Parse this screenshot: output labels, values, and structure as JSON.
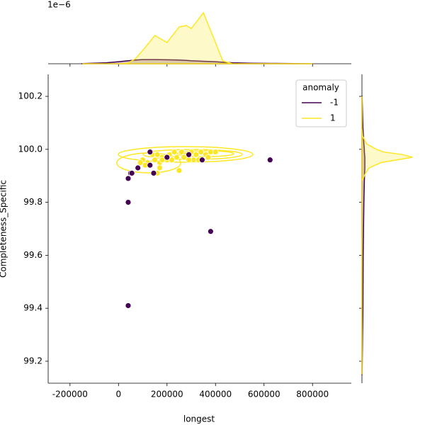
{
  "chart_data": {
    "type": "scatter",
    "x_label": "longest",
    "y_label": "Completeness_Specific",
    "xlim": [
      -290000,
      960000
    ],
    "ylim": [
      99.117,
      100.283
    ],
    "xticks": [
      -200000,
      0,
      200000,
      400000,
      600000,
      800000
    ],
    "yticks": [
      99.2,
      99.4,
      99.6,
      99.8,
      {
        "value": 100.0,
        "label": "100.0"
      },
      100.2
    ],
    "legend": {
      "title": "anomaly",
      "position": "upper right"
    },
    "series": [
      {
        "name": "-1",
        "color": "#440154",
        "x": [
          625000,
          380000,
          40000,
          40000,
          40000,
          50000,
          55000,
          80000,
          130000,
          145000,
          200000,
          345000,
          130000,
          290000
        ],
        "y": [
          99.96,
          99.69,
          99.8,
          99.41,
          99.89,
          99.91,
          99.91,
          99.93,
          99.94,
          99.91,
          99.97,
          99.96,
          99.99,
          99.98
        ]
      },
      {
        "name": "1",
        "color": "#fde725",
        "x": [
          130000,
          140000,
          160000,
          180000,
          210000,
          230000,
          260000,
          280000,
          300000,
          320000,
          340000,
          360000,
          380000,
          400000,
          240000,
          270000,
          310000,
          330000,
          290000,
          100000,
          90000,
          120000,
          170000,
          200000,
          150000,
          110000,
          170000,
          250000,
          160000,
          180000,
          370000,
          220000
        ],
        "y": [
          99.99,
          99.98,
          99.98,
          99.97,
          99.98,
          99.99,
          99.99,
          99.98,
          99.99,
          99.98,
          99.99,
          99.98,
          99.99,
          99.99,
          99.97,
          99.97,
          99.96,
          99.96,
          99.96,
          99.96,
          99.95,
          99.95,
          99.95,
          99.96,
          99.96,
          99.94,
          99.93,
          99.92,
          99.91,
          99.96,
          99.97,
          99.96
        ]
      }
    ],
    "marginal_x": {
      "offset_label": "1e−6",
      "ylim": [
        0,
        3.6
      ],
      "x": [
        -150000,
        -50000,
        0,
        40000,
        70000,
        100000,
        150000,
        200000,
        250000,
        280000,
        300000,
        350000,
        400000,
        430000,
        470000,
        550000,
        650000,
        800000
      ],
      "series": [
        {
          "name": "-1",
          "values": [
            0.01,
            0.06,
            0.12,
            0.18,
            0.22,
            0.25,
            0.25,
            0.24,
            0.22,
            0.2,
            0.18,
            0.15,
            0.12,
            0.09,
            0.06,
            0.03,
            0.02,
            0.0
          ]
        },
        {
          "name": "1",
          "values": [
            0.0,
            0.0,
            0.0,
            0.05,
            0.3,
            0.8,
            1.69,
            1.27,
            2.2,
            2.29,
            2.1,
            3.05,
            1.27,
            0.17,
            0.0,
            0.0,
            0.0,
            0.0
          ]
        }
      ]
    },
    "marginal_y": {
      "xlim": [
        0,
        25
      ],
      "y": [
        99.15,
        99.4,
        99.6,
        99.8,
        99.88,
        99.91,
        99.93,
        99.95,
        99.97,
        99.98,
        99.99,
        100.0,
        100.02,
        100.05,
        100.08,
        100.2
      ],
      "series": [
        {
          "name": "-1",
          "values": [
            0.05,
            0.4,
            0.5,
            0.8,
            1.0,
            1.1,
            1.2,
            1.2,
            1.2,
            1.1,
            1.0,
            1.0,
            0.8,
            0.6,
            0.4,
            0.05
          ]
        },
        {
          "name": "1",
          "values": [
            0,
            0,
            0,
            0,
            0,
            1.5,
            3,
            8,
            21,
            17,
            9,
            6,
            2,
            0.3,
            0,
            0
          ]
        }
      ]
    }
  }
}
